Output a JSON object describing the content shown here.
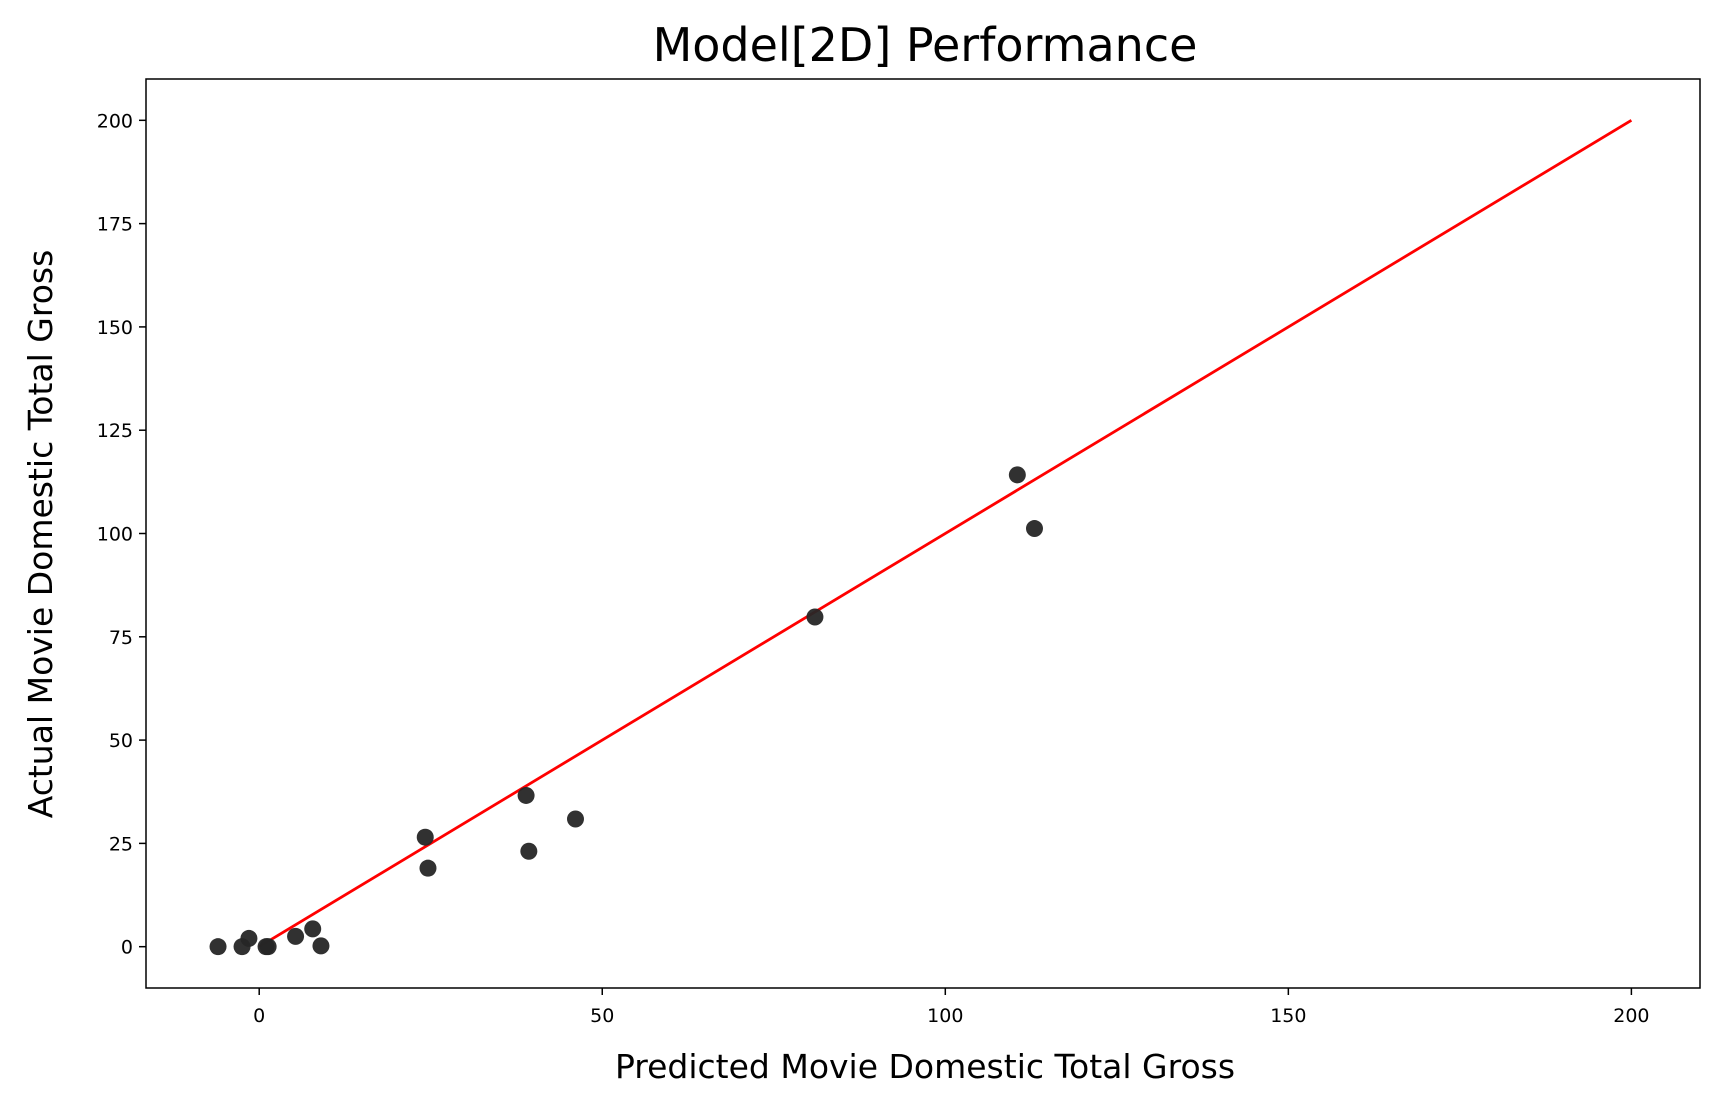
{
  "chart_data": {
    "type": "scatter",
    "title": "Model[2D] Performance",
    "xlabel": "Predicted Movie Domestic Total Gross",
    "ylabel": "Actual Movie Domestic Total Gross",
    "xlim": [
      -16.5,
      210
    ],
    "ylim": [
      -10,
      210
    ],
    "xticks": [
      0,
      50,
      100,
      150,
      200
    ],
    "yticks": [
      0,
      25,
      50,
      75,
      100,
      125,
      150,
      175,
      200
    ],
    "grid": false,
    "points": [
      {
        "x": -6.0,
        "y": 0.0
      },
      {
        "x": -2.5,
        "y": 0.0
      },
      {
        "x": -1.5,
        "y": 2.0
      },
      {
        "x": 1.0,
        "y": 0.0
      },
      {
        "x": 1.3,
        "y": 0.0
      },
      {
        "x": 5.3,
        "y": 2.5
      },
      {
        "x": 7.8,
        "y": 4.3
      },
      {
        "x": 9.0,
        "y": 0.2
      },
      {
        "x": 24.2,
        "y": 26.5
      },
      {
        "x": 24.6,
        "y": 19.0
      },
      {
        "x": 38.9,
        "y": 36.6
      },
      {
        "x": 39.3,
        "y": 23.1
      },
      {
        "x": 46.1,
        "y": 30.9
      },
      {
        "x": 81.0,
        "y": 79.8
      },
      {
        "x": 110.5,
        "y": 114.2
      },
      {
        "x": 113.0,
        "y": 101.2
      }
    ],
    "reference_line": {
      "x": [
        0,
        200
      ],
      "y": [
        0,
        200
      ],
      "color": "#ff0000"
    },
    "point_color": "#262626"
  }
}
